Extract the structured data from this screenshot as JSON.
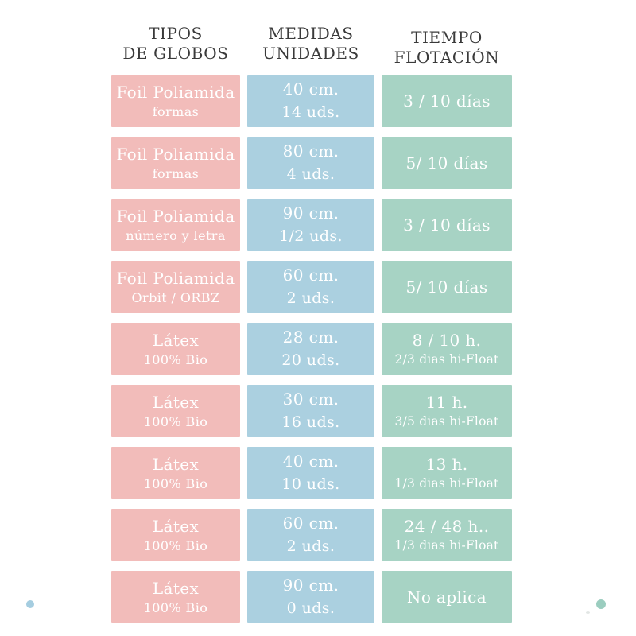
{
  "colors": {
    "type_cell": "#f2bcba",
    "measure_cell": "#abd0e0",
    "float_cell": "#a7d3c4",
    "header_text": "#3a3a3a",
    "cell_text": "#ffffff",
    "dot_blue": "#a5cde0",
    "dot_teal": "#9bcdbf"
  },
  "headers": [
    {
      "line1": "TIPOS",
      "line2": "DE GLOBOS"
    },
    {
      "line1": "MEDIDAS",
      "line2": "UNIDADES"
    },
    {
      "line1": "TIEMPO",
      "line2": "FLOTACIÓN"
    }
  ],
  "rows": [
    {
      "type_line1": "Foil Poliamida",
      "type_line2": "formas",
      "measure_line1": "40 cm.",
      "measure_line2": "14 uds.",
      "float_line1": "3 / 10 días",
      "float_line2": ""
    },
    {
      "type_line1": "Foil Poliamida",
      "type_line2": "formas",
      "measure_line1": "80 cm.",
      "measure_line2": "4 uds.",
      "float_line1": "5/ 10 días",
      "float_line2": ""
    },
    {
      "type_line1": "Foil Poliamida",
      "type_line2": "número y letra",
      "measure_line1": "90 cm.",
      "measure_line2": "1/2 uds.",
      "float_line1": "3 / 10 días",
      "float_line2": ""
    },
    {
      "type_line1": "Foil Poliamida",
      "type_line2": "Orbit / ORBZ",
      "measure_line1": "60 cm.",
      "measure_line2": "2 uds.",
      "float_line1": "5/ 10 días",
      "float_line2": ""
    },
    {
      "type_line1": "Látex",
      "type_line2": "100% Bio",
      "measure_line1": "28 cm.",
      "measure_line2": "20 uds.",
      "float_line1": "8 / 10 h.",
      "float_line2": "2/3 dias hi-Float"
    },
    {
      "type_line1": "Látex",
      "type_line2": "100% Bio",
      "measure_line1": "30 cm.",
      "measure_line2": "16 uds.",
      "float_line1": "11 h.",
      "float_line2": "3/5 dias hi-Float"
    },
    {
      "type_line1": "Látex",
      "type_line2": "100% Bio",
      "measure_line1": "40 cm.",
      "measure_line2": "10 uds.",
      "float_line1": "13 h.",
      "float_line2": "1/3 dias hi-Float"
    },
    {
      "type_line1": "Látex",
      "type_line2": "100% Bio",
      "measure_line1": "60 cm.",
      "measure_line2": "2 uds.",
      "float_line1": "24 / 48 h..",
      "float_line2": "1/3 dias hi-Float"
    },
    {
      "type_line1": "Látex",
      "type_line2": "100% Bio",
      "measure_line1": "90 cm.",
      "measure_line2": "0 uds.",
      "float_line1": "No aplica",
      "float_line2": ""
    }
  ],
  "chart_data": {
    "type": "table",
    "columns": [
      "TIPOS DE GLOBOS",
      "MEDIDAS UNIDADES",
      "TIEMPO FLOTACIÓN"
    ],
    "rows": [
      [
        "Foil Poliamida formas",
        "40 cm. 14 uds.",
        "3 / 10 días"
      ],
      [
        "Foil Poliamida formas",
        "80 cm. 4 uds.",
        "5/ 10 días"
      ],
      [
        "Foil Poliamida número y letra",
        "90 cm. 1/2 uds.",
        "3 / 10 días"
      ],
      [
        "Foil Poliamida Orbit / ORBZ",
        "60 cm. 2 uds.",
        "5/ 10 días"
      ],
      [
        "Látex 100% Bio",
        "28 cm. 20 uds.",
        "8 / 10 h. 2/3 dias hi-Float"
      ],
      [
        "Látex 100% Bio",
        "30 cm. 16 uds.",
        "11 h. 3/5 dias hi-Float"
      ],
      [
        "Látex 100% Bio",
        "40 cm. 10 uds.",
        "13 h. 1/3 dias hi-Float"
      ],
      [
        "Látex 100% Bio",
        "60 cm. 2 uds.",
        "24 / 48 h.. 1/3 dias hi-Float"
      ],
      [
        "Látex 100% Bio",
        "90 cm. 0 uds.",
        "No aplica"
      ]
    ],
    "title": "",
    "legend": "off",
    "grid": "off"
  }
}
